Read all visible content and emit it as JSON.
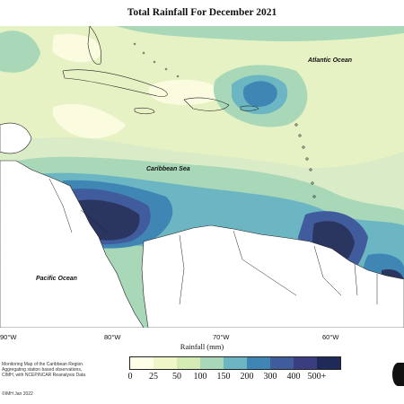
{
  "title": "Total Rainfall For December 2021",
  "labels": {
    "atlantic": "Atlantic Ocean",
    "caribbean": "Caribbean Sea",
    "pacific": "Pacific Ocean"
  },
  "longitudes": [
    "90°W",
    "80°W",
    "70°W",
    "60°W"
  ],
  "legend": {
    "title": "Rainfall (mm)",
    "ticks": [
      "0",
      "25",
      "50",
      "100",
      "150",
      "200",
      "300",
      "400",
      "500+"
    ],
    "colors": [
      "#ffffe8",
      "#f0f6c8",
      "#d4ebb4",
      "#a8d8b8",
      "#6cb6c4",
      "#3f86b4",
      "#415c9c",
      "#3a3d80",
      "#1f2a58"
    ]
  },
  "info_lines": [
    "Monitoring Map of the Caribbean Region.",
    "Aggregating station based observations,",
    "CIMH, with NCEP/NCAR Reanalysis Data"
  ],
  "credit": "©IMH Jan 2022"
}
